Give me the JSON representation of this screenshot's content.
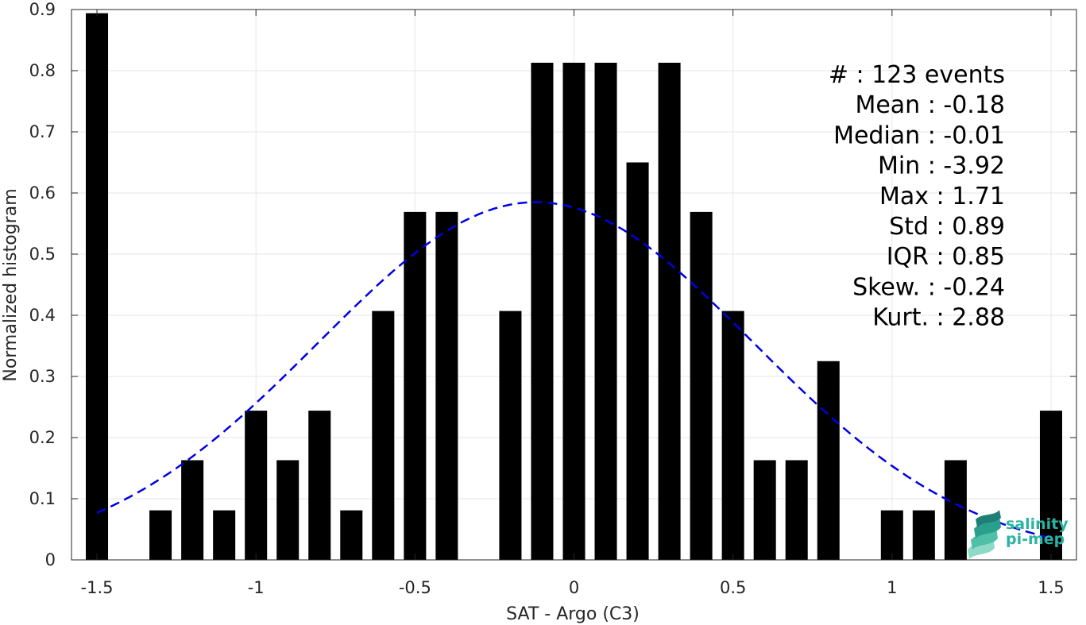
{
  "chart_data": {
    "type": "bar",
    "xlabel": "SAT - Argo (C3)",
    "ylabel": "Normalized histogram",
    "xlim": [
      -1.58,
      1.58
    ],
    "ylim": [
      0,
      0.9
    ],
    "xticks": [
      -1.5,
      -1,
      -0.5,
      0,
      0.5,
      1,
      1.5
    ],
    "xtick_labels": [
      "-1.5",
      "-1",
      "-0.5",
      "0",
      "0.5",
      "1",
      "1.5"
    ],
    "yticks": [
      0,
      0.1,
      0.2,
      0.3,
      0.4,
      0.5,
      0.6,
      0.7,
      0.8,
      0.9
    ],
    "ytick_labels": [
      "0",
      "0.1",
      "0.2",
      "0.3",
      "0.4",
      "0.5",
      "0.6",
      "0.7",
      "0.8",
      "0.9"
    ],
    "grid": true,
    "bar_width": 0.07,
    "x": [
      -1.5,
      -1.4,
      -1.3,
      -1.2,
      -1.1,
      -1.0,
      -0.9,
      -0.8,
      -0.7,
      -0.6,
      -0.5,
      -0.4,
      -0.3,
      -0.2,
      -0.1,
      0.0,
      0.1,
      0.2,
      0.3,
      0.4,
      0.5,
      0.6,
      0.7,
      0.8,
      0.9,
      1.0,
      1.1,
      1.2,
      1.3,
      1.4,
      1.5
    ],
    "values": [
      0.894,
      0,
      0.081,
      0.163,
      0.081,
      0.244,
      0.163,
      0.244,
      0.081,
      0.407,
      0.569,
      0.569,
      0,
      0.407,
      0.813,
      0.813,
      0.813,
      0.65,
      0.813,
      0.569,
      0.407,
      0.163,
      0.163,
      0.325,
      0,
      0.081,
      0.081,
      0.163,
      0,
      0,
      0.244
    ],
    "bar_color": "#000000",
    "fit_curve": {
      "style": "dashed",
      "color": "#0000e6",
      "mean": -0.12,
      "std": 0.685,
      "peak": 0.585,
      "x_range": [
        -1.5,
        1.5
      ]
    },
    "stats": [
      {
        "label": "#  ",
        "value": "123 events"
      },
      {
        "label": "Mean",
        "value": "-0.18"
      },
      {
        "label": "Median",
        "value": "-0.01"
      },
      {
        "label": "Min",
        "value": "-3.92"
      },
      {
        "label": "Max",
        "value": "1.71"
      },
      {
        "label": "Std",
        "value": "0.89"
      },
      {
        "label": "IQR",
        "value": "0.85"
      },
      {
        "label": "Skew.",
        "value": "-0.24"
      },
      {
        "label": "Kurt.",
        "value": "2.88"
      }
    ]
  },
  "logo": {
    "line1": "salinity",
    "line2": "pi-mep",
    "icon": "layered-waves-icon",
    "color": "#2bb3a3"
  }
}
